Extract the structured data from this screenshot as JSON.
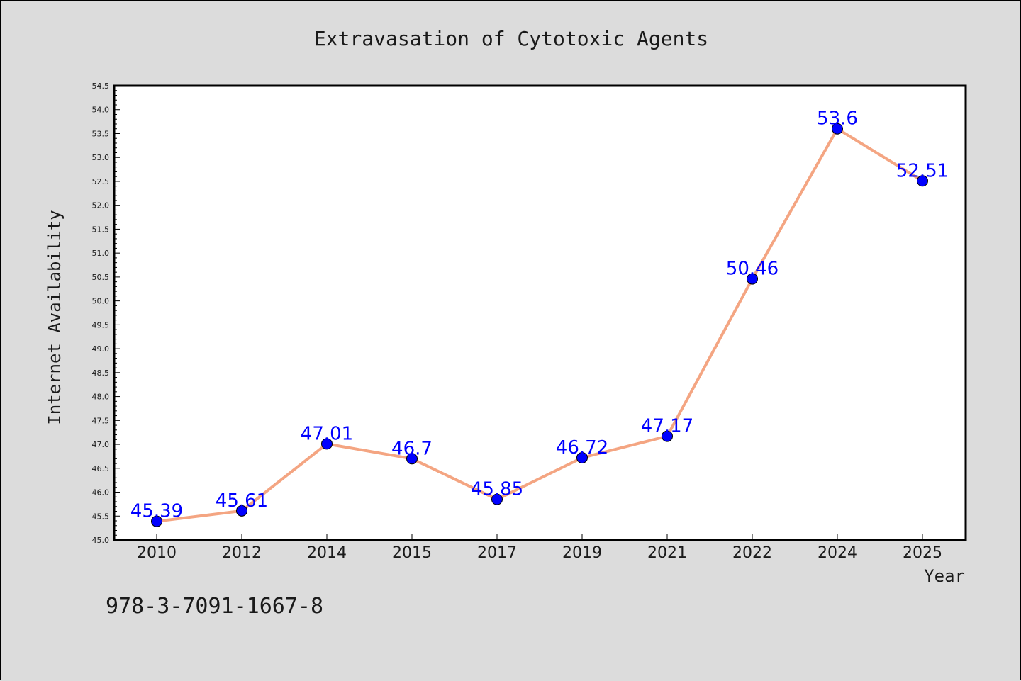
{
  "chart_data": {
    "type": "line",
    "title": "Extravasation of Cytotoxic Agents",
    "xlabel": "Year",
    "ylabel": "Internet Availability",
    "categories": [
      "2010",
      "2012",
      "2014",
      "2015",
      "2017",
      "2019",
      "2021",
      "2022",
      "2024",
      "2025"
    ],
    "series": [
      {
        "values": [
          45.39,
          45.61,
          47.01,
          46.7,
          45.85,
          46.72,
          47.17,
          50.46,
          53.6,
          52.51
        ],
        "data_labels": [
          "45.39",
          "45.61",
          "47.01",
          "46.7",
          "45.85",
          "46.72",
          "47.17",
          "50.46",
          "53.6",
          "52.51"
        ],
        "line_color": "#f4a582",
        "marker_color": "#0000ff"
      }
    ],
    "ylim": [
      45.0,
      54.5
    ],
    "yticks": [
      "45.0",
      "45.5",
      "46.0",
      "46.5",
      "47.0",
      "47.5",
      "48.0",
      "48.5",
      "49.0",
      "49.5",
      "50.0",
      "50.5",
      "51.0",
      "51.5",
      "52.0",
      "52.5",
      "53.0",
      "53.5",
      "54.0",
      "54.5"
    ],
    "grid": false,
    "legend": "none"
  },
  "footer": {
    "text": "978-3-7091-1667-8"
  },
  "colors": {
    "background": "#dcdcdc",
    "plot_background": "#ffffff",
    "line": "#f4a582",
    "marker": "#0000ff",
    "label": "#0000ff"
  }
}
